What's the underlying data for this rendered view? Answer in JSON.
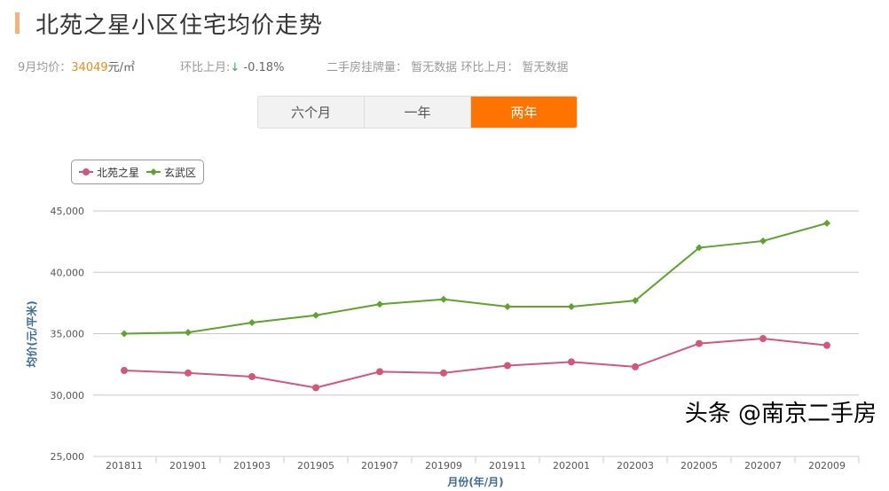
{
  "header": {
    "title": "北苑之星小区住宅均价走势"
  },
  "stats": {
    "avg_label": "9月均价：",
    "avg_value": "34049",
    "avg_unit": "元/㎡",
    "mom_label": "环比上月:",
    "mom_arrow": "↓",
    "mom_value": "-0.18%",
    "listing_label": "二手房挂牌量：",
    "listing_value": "暂无数据",
    "listing_mom_label": "环比上月：",
    "listing_mom_value": "暂无数据"
  },
  "tabs": [
    {
      "label": "六个月",
      "active": false
    },
    {
      "label": "一年",
      "active": false
    },
    {
      "label": "两年",
      "active": true
    }
  ],
  "colors": {
    "accent": "#ff7400",
    "series1": "#d2577a",
    "series2": "#5fa22e"
  },
  "watermark": "头条 @南京二手房",
  "chart_data": {
    "type": "line",
    "title": "",
    "xlabel": "月份(年/月)",
    "ylabel": "均价(元/平米)",
    "ylim": [
      25000,
      45000
    ],
    "yticks": [
      "25,000",
      "30,000",
      "35,000",
      "40,000",
      "45,000"
    ],
    "grid": true,
    "legend": "top-left",
    "categories": [
      "201811",
      "201901",
      "201903",
      "201905",
      "201907",
      "201909",
      "201911",
      "202001",
      "202003",
      "202005",
      "202007",
      "202009"
    ],
    "series": [
      {
        "name": "北苑之星",
        "values": [
          32000,
          31800,
          31500,
          30600,
          31900,
          31800,
          32400,
          32700,
          32300,
          34200,
          34600,
          34049
        ]
      },
      {
        "name": "玄武区",
        "values": [
          35000,
          35100,
          35900,
          36500,
          37400,
          37800,
          37200,
          37200,
          37700,
          42000,
          42550,
          44000
        ]
      }
    ]
  }
}
